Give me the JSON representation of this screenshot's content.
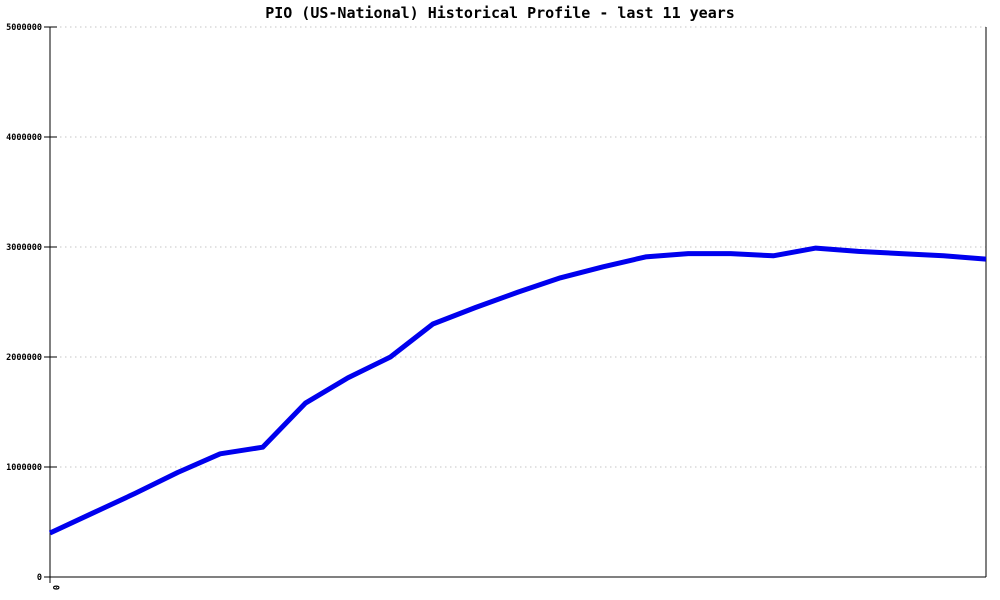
{
  "chart_data": {
    "type": "line",
    "title": "PIO (US-National) Historical Profile - last 11 years",
    "x": [
      0,
      1,
      2,
      3,
      4,
      5,
      6,
      7,
      8,
      9,
      10,
      11,
      12,
      13,
      14,
      15,
      16,
      17,
      18,
      19,
      20,
      21,
      22
    ],
    "values": [
      400000,
      580000,
      760000,
      950000,
      1120000,
      1180000,
      1580000,
      1810000,
      2000000,
      2300000,
      2450000,
      2590000,
      2720000,
      2820000,
      2910000,
      2940000,
      2940000,
      2920000,
      2990000,
      2960000,
      2940000,
      2920000,
      2890000
    ],
    "ylim": [
      0,
      5000000
    ],
    "yticks": [
      0,
      1000000,
      2000000,
      3000000,
      4000000,
      5000000
    ],
    "ytick_labels": [
      "0",
      "1000000",
      "2000000",
      "3000000",
      "4000000",
      "5000000"
    ],
    "xticks": [
      {
        "pos": 0,
        "label": "0"
      }
    ],
    "grid": "horizontal-dotted",
    "legend": "none",
    "line_color": "#0000ee",
    "grid_color": "#c6c6c6",
    "axis_color": "#000000"
  }
}
